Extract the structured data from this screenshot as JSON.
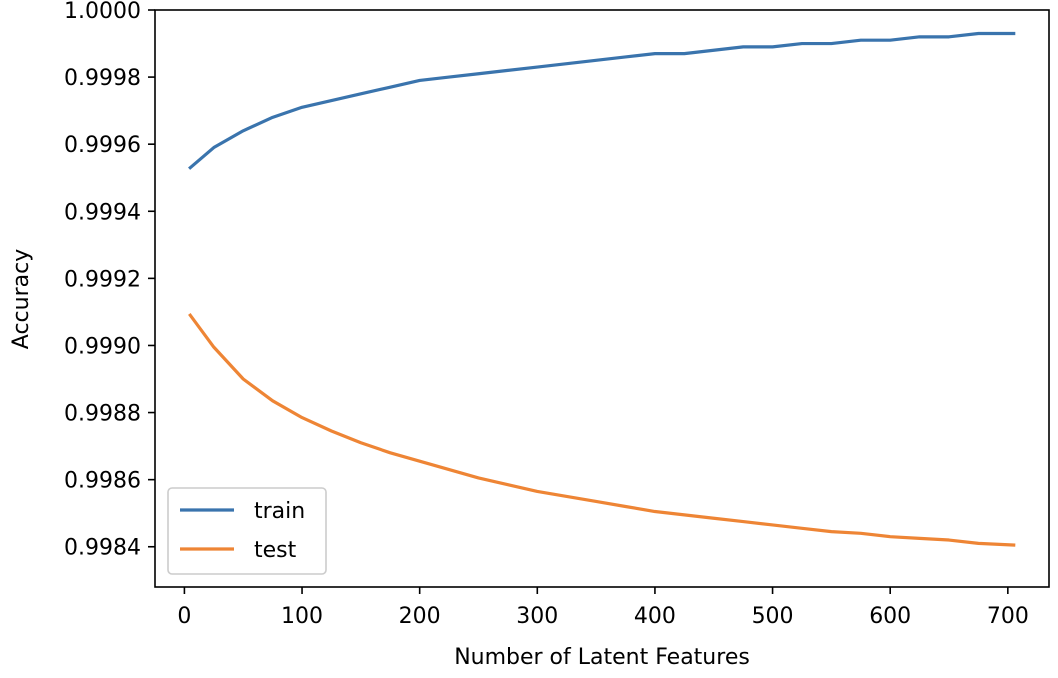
{
  "chart_data": {
    "type": "line",
    "title": "",
    "xlabel": "Number of Latent Features",
    "ylabel": "Accuracy",
    "xlim": [
      -25,
      735
    ],
    "ylim": [
      0.99828,
      1.0
    ],
    "xticks": [
      0,
      100,
      200,
      300,
      400,
      500,
      600,
      700
    ],
    "yticks": [
      0.9984,
      0.9986,
      0.9988,
      0.999,
      0.9992,
      0.9994,
      0.9996,
      0.9998,
      1.0
    ],
    "xtick_labels": [
      "0",
      "100",
      "200",
      "300",
      "400",
      "500",
      "600",
      "700"
    ],
    "ytick_labels": [
      "0.9984",
      "0.9986",
      "0.9988",
      "0.9990",
      "0.9992",
      "0.9994",
      "0.9996",
      "0.9998",
      "1.0000"
    ],
    "grid": false,
    "legend": {
      "position": "lower-left"
    },
    "series": [
      {
        "name": "train",
        "color": "#3a74ad",
        "x": [
          5,
          25,
          50,
          75,
          100,
          125,
          150,
          175,
          200,
          225,
          250,
          275,
          300,
          325,
          350,
          375,
          400,
          425,
          450,
          475,
          500,
          525,
          550,
          575,
          600,
          625,
          650,
          675,
          705
        ],
        "y": [
          0.99953,
          0.99959,
          0.99964,
          0.99968,
          0.99971,
          0.99973,
          0.99975,
          0.99977,
          0.99979,
          0.9998,
          0.99981,
          0.99982,
          0.99983,
          0.99984,
          0.99985,
          0.99986,
          0.99987,
          0.99987,
          0.99988,
          0.99989,
          0.99989,
          0.9999,
          0.9999,
          0.99991,
          0.99991,
          0.99992,
          0.99992,
          0.99993,
          0.99993
        ]
      },
      {
        "name": "test",
        "color": "#ee8535",
        "x": [
          5,
          25,
          50,
          75,
          100,
          125,
          150,
          175,
          200,
          225,
          250,
          275,
          300,
          325,
          350,
          375,
          400,
          425,
          450,
          475,
          500,
          525,
          550,
          575,
          600,
          625,
          650,
          675,
          705
        ],
        "y": [
          0.99909,
          0.998995,
          0.9989,
          0.998835,
          0.998785,
          0.998745,
          0.99871,
          0.99868,
          0.998655,
          0.99863,
          0.998605,
          0.998585,
          0.998565,
          0.99855,
          0.998535,
          0.99852,
          0.998505,
          0.998495,
          0.998485,
          0.998475,
          0.998465,
          0.998455,
          0.998445,
          0.99844,
          0.99843,
          0.998425,
          0.99842,
          0.99841,
          0.998405
        ]
      }
    ]
  }
}
